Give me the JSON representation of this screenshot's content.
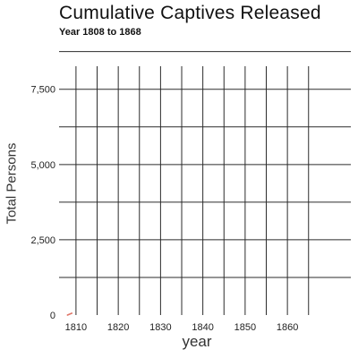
{
  "chart_data": {
    "type": "line",
    "title": "Cumulative Captives Released",
    "subtitle": "Year 1808 to 1868",
    "xlabel": "year",
    "ylabel": "Total Persons",
    "xlim": [
      1806,
      1875
    ],
    "ylim": [
      0,
      8800
    ],
    "x_ticks": [
      1810,
      1820,
      1830,
      1840,
      1850,
      1860
    ],
    "x_tick_labels": [
      "1810",
      "1820",
      "1830",
      "1840",
      "1850",
      "1860"
    ],
    "y_ticks": [
      0,
      2500,
      5000,
      7500
    ],
    "y_tick_labels": [
      "0",
      "2,500",
      "5,000",
      "7,500"
    ],
    "grid": true,
    "legend": "none",
    "series": [
      {
        "color": "#e0796b",
        "x": [
          1808,
          1809
        ],
        "y": [
          0,
          60
        ]
      }
    ]
  }
}
